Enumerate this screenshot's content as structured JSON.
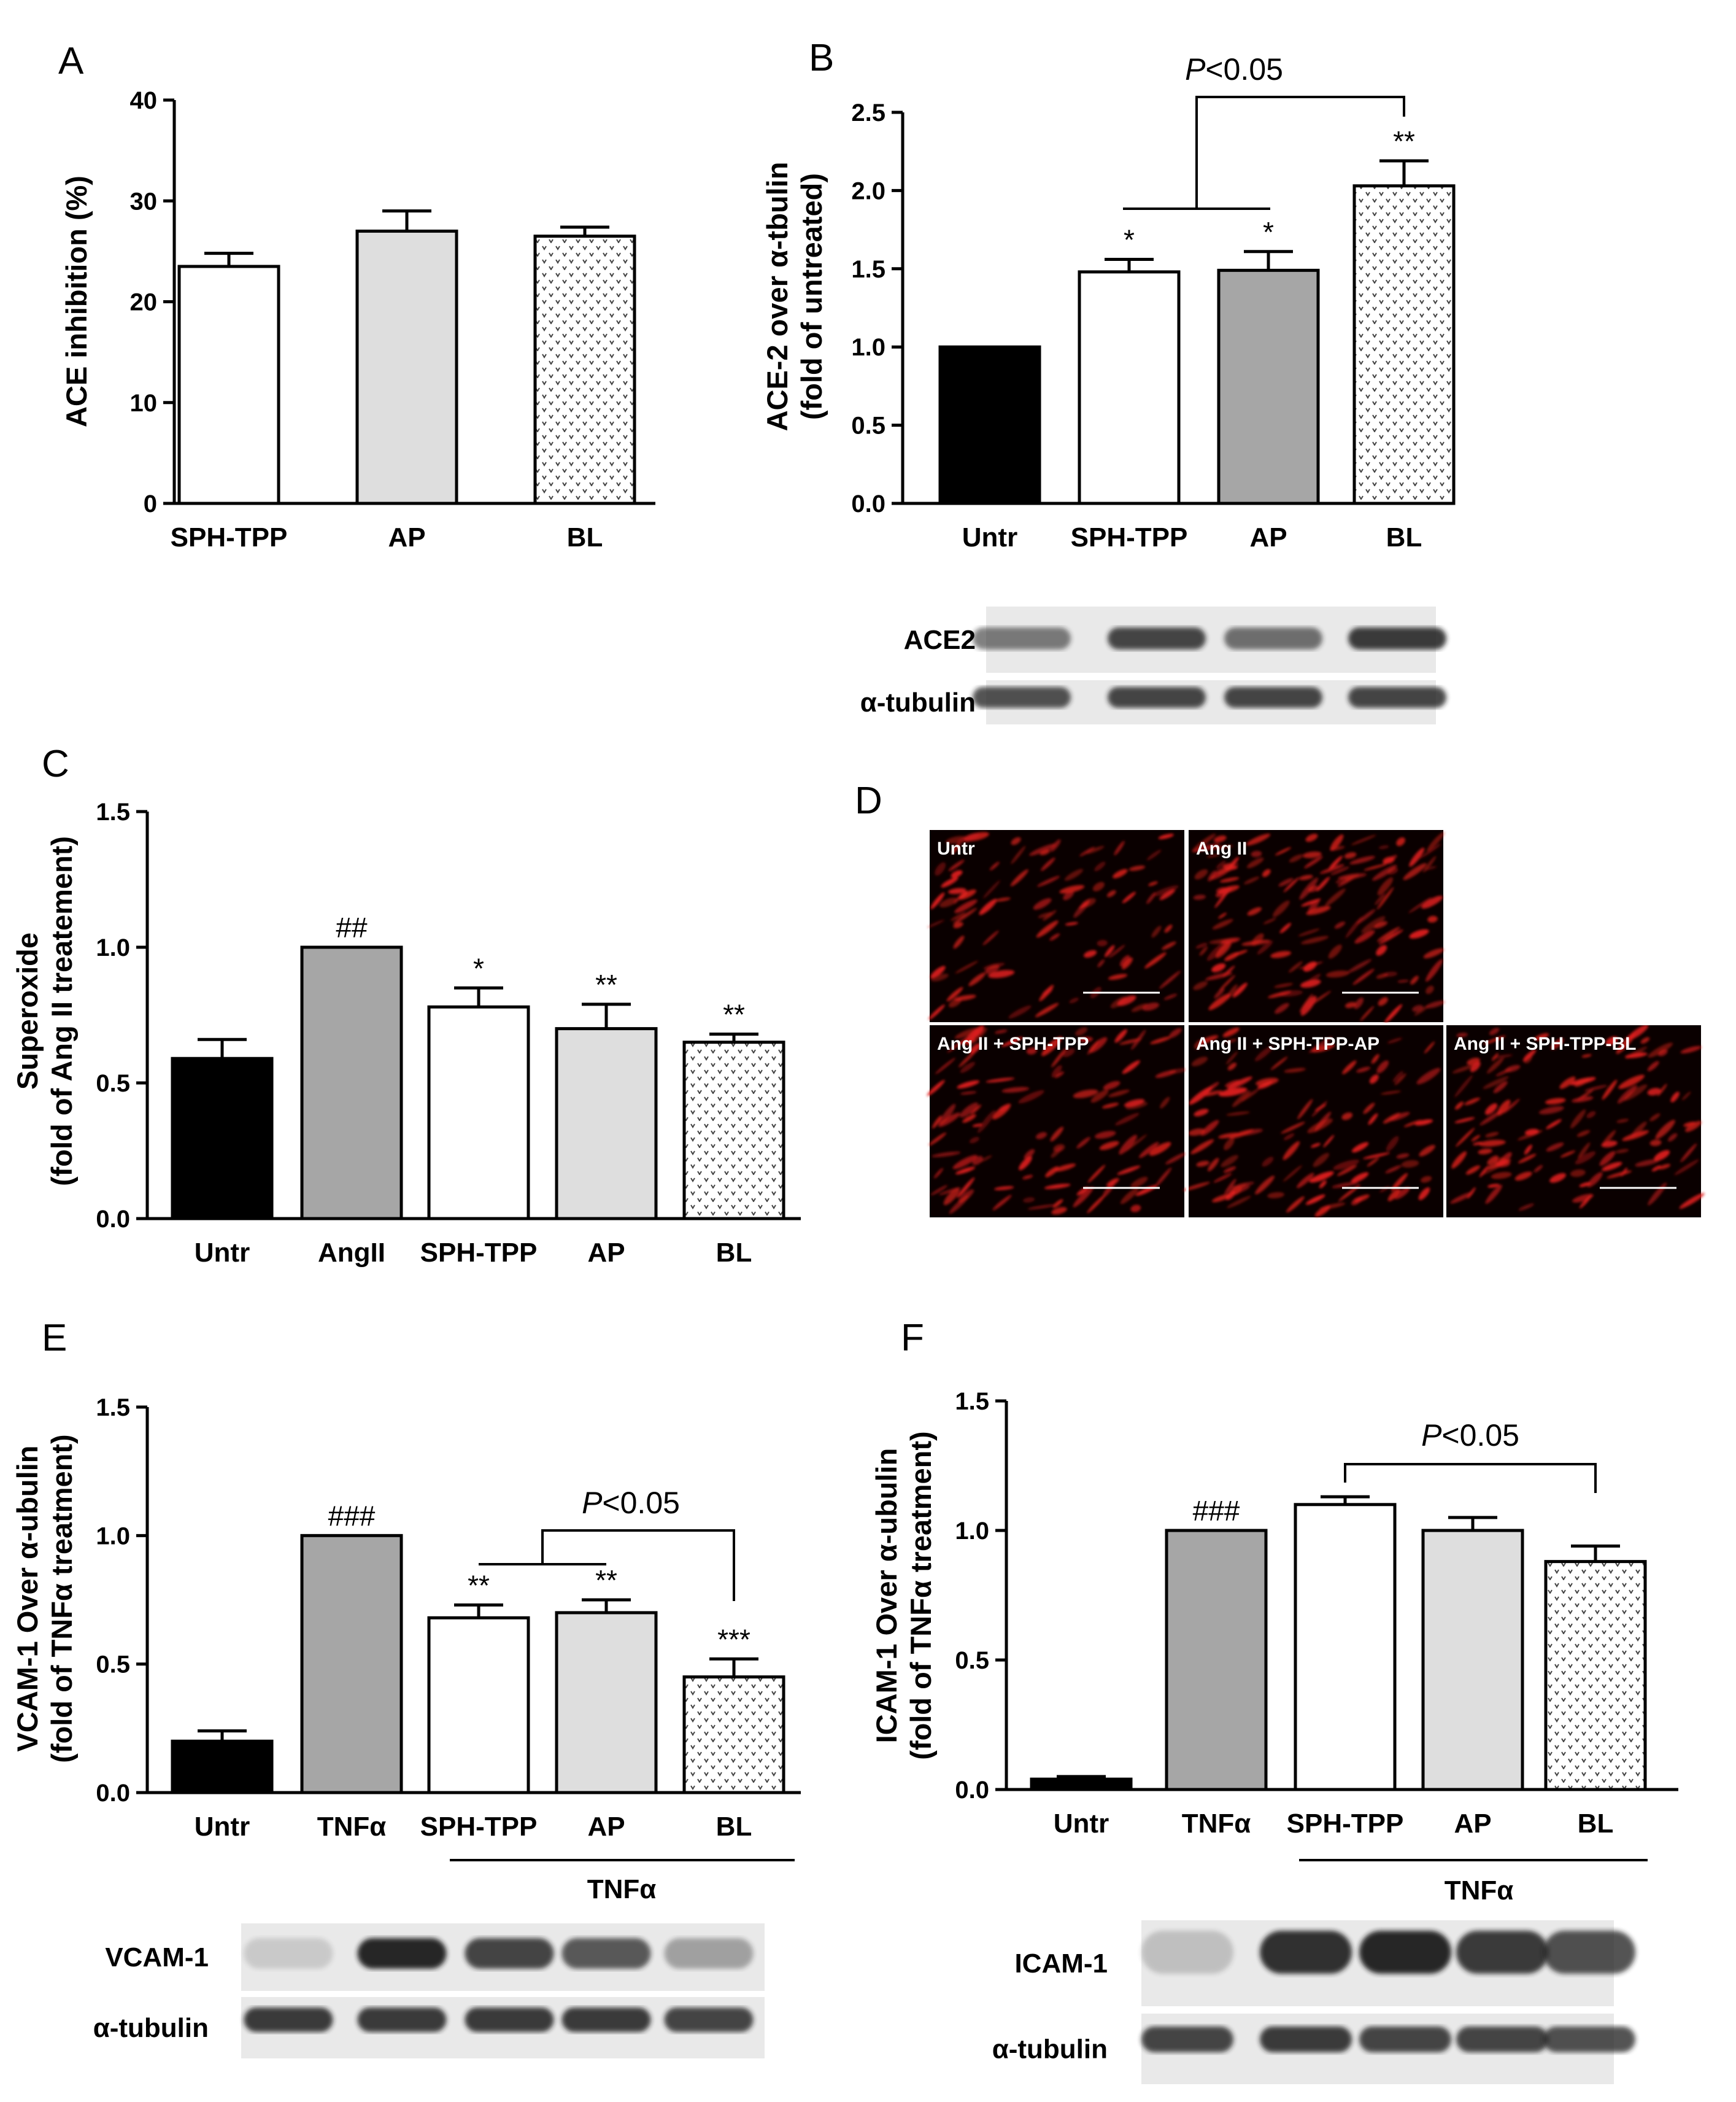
{
  "chart_data": [
    {
      "panel": "A",
      "type": "bar",
      "ylabel": "ACE inhibition (%)",
      "ylim": [
        0,
        40
      ],
      "yticks": [
        "0",
        "10",
        "20",
        "30",
        "40"
      ],
      "categories": [
        "SPH-TPP",
        "AP",
        "BL"
      ],
      "values": [
        23.5,
        27.0,
        26.5
      ],
      "errors": [
        1.3,
        2.0,
        0.9
      ],
      "fills": [
        "white",
        "lightgray",
        "pattern"
      ],
      "annotations": [
        "",
        "",
        ""
      ]
    },
    {
      "panel": "B",
      "type": "bar",
      "ylabel": [
        "ACE-2 over α-tbulin",
        "(fold of untreated)"
      ],
      "ylim": [
        0,
        2.5
      ],
      "yticks": [
        "0.0",
        "0.5",
        "1.0",
        "1.5",
        "2.0",
        "2.5"
      ],
      "categories": [
        "Untr",
        "SPH-TPP",
        "AP",
        "BL"
      ],
      "values": [
        1.0,
        1.48,
        1.49,
        2.03
      ],
      "errors": [
        0,
        0.08,
        0.12,
        0.16
      ],
      "fills": [
        "black",
        "white",
        "gray",
        "pattern"
      ],
      "annotations": [
        "",
        "*",
        "*",
        "**"
      ],
      "significance": {
        "text_prefix": "P",
        "text_suffix": "<0.05"
      }
    },
    {
      "panel": "C",
      "type": "bar",
      "ylabel": [
        "Superoxide",
        "(fold of Ang II treatement)"
      ],
      "ylim": [
        0,
        1.5
      ],
      "yticks": [
        "0.0",
        "0.5",
        "1.0",
        "1.5"
      ],
      "categories": [
        "Untr",
        "AngII",
        "SPH-TPP",
        "AP",
        "BL"
      ],
      "values": [
        0.59,
        1.0,
        0.78,
        0.7,
        0.65
      ],
      "errors": [
        0.07,
        0,
        0.07,
        0.09,
        0.03
      ],
      "fills": [
        "black",
        "gray",
        "white",
        "lightgray",
        "pattern"
      ],
      "annotations": [
        "",
        "##",
        "*",
        "**",
        "**"
      ]
    },
    {
      "panel": "E",
      "type": "bar",
      "ylabel": [
        "VCAM-1 Over α-ubulin",
        "(fold of TNFα treatment)"
      ],
      "ylim": [
        0,
        1.5
      ],
      "yticks": [
        "0.0",
        "0.5",
        "1.0",
        "1.5"
      ],
      "categories": [
        "Untr",
        "TNFα",
        "SPH-TPP",
        "AP",
        "BL"
      ],
      "values": [
        0.2,
        1.0,
        0.68,
        0.7,
        0.45
      ],
      "errors": [
        0.04,
        0,
        0.05,
        0.05,
        0.07
      ],
      "fills": [
        "black",
        "gray",
        "white",
        "lightgray",
        "pattern"
      ],
      "annotations": [
        "",
        "###",
        "**",
        "**",
        "***"
      ],
      "group_label": "TNFα",
      "significance": {
        "text_prefix": "P",
        "text_suffix": "<0.05"
      }
    },
    {
      "panel": "F",
      "type": "bar",
      "ylabel": [
        "ICAM-1 Over α-ubulin",
        "(fold of TNFα treatment)"
      ],
      "ylim": [
        0,
        1.5
      ],
      "yticks": [
        "0.0",
        "0.5",
        "1.0",
        "1.5"
      ],
      "categories": [
        "Untr",
        "TNFα",
        "SPH-TPP",
        "AP",
        "BL"
      ],
      "values": [
        0.04,
        1.0,
        1.1,
        1.0,
        0.88
      ],
      "errors": [
        0.01,
        0,
        0.03,
        0.05,
        0.06
      ],
      "fills": [
        "black",
        "gray",
        "white",
        "lightgray",
        "pattern"
      ],
      "annotations": [
        "",
        "###",
        "",
        "",
        ""
      ],
      "group_label": "TNFα",
      "significance": {
        "text_prefix": "P",
        "text_suffix": "<0.05"
      }
    }
  ],
  "colors": {
    "black": "#000000",
    "gray": "#a6a6a6",
    "lightgray": "#dedede",
    "white": "#ffffff",
    "blot_bg": "#e9e9e9",
    "blot_band": "#1e1e1e",
    "micro_bg": "#0a0000",
    "micro_cell": "#e0201c"
  },
  "panel_labels": {
    "D": "D"
  },
  "blots": {
    "B": {
      "rows": [
        {
          "label": "ACE2",
          "intensities": [
            0.55,
            0.8,
            0.6,
            0.85
          ]
        },
        {
          "label": "α-tubulin",
          "intensities": [
            0.75,
            0.8,
            0.8,
            0.8
          ]
        }
      ]
    },
    "E": {
      "rows": [
        {
          "label": "VCAM-1",
          "intensities": [
            0.15,
            0.95,
            0.8,
            0.7,
            0.35
          ]
        },
        {
          "label": "α-tubulin",
          "intensities": [
            0.85,
            0.85,
            0.85,
            0.85,
            0.8
          ]
        }
      ]
    },
    "F": {
      "rows": [
        {
          "label": "ICAM-1",
          "intensities": [
            0.2,
            0.9,
            0.95,
            0.85,
            0.75
          ]
        },
        {
          "label": "α-tubulin",
          "intensities": [
            0.8,
            0.85,
            0.8,
            0.8,
            0.75
          ]
        }
      ]
    }
  },
  "microscopy": {
    "panel": "D",
    "images": [
      {
        "label": "Untr",
        "density": 0.5
      },
      {
        "label": "Ang II",
        "density": 0.9
      },
      {
        "label": "Ang II + SPH-TPP",
        "density": 0.6
      },
      {
        "label": "Ang II + SPH-TPP-AP",
        "density": 0.6
      },
      {
        "label": "Ang II + SPH-TPP-BL",
        "density": 0.7
      }
    ]
  }
}
